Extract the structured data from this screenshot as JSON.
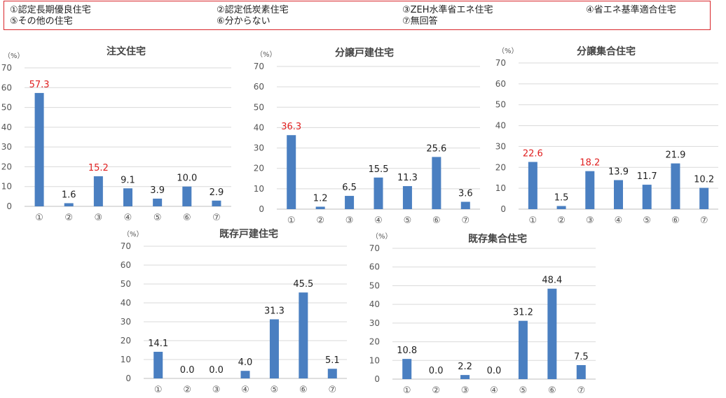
{
  "legend": {
    "items": [
      "①認定長期優良住宅",
      "②認定低炭素住宅",
      "③ZEH水準省エネ住宅",
      "④省エネ基準適合住宅",
      "⑤その他の住宅",
      "⑥分からない",
      "⑦無回答"
    ]
  },
  "colors": {
    "bar": "#4a7fc1",
    "highlight": "#e02020",
    "grid": "#d9d9d9"
  },
  "chart_data": [
    {
      "type": "bar",
      "title": "注文住宅",
      "unit": "（%）",
      "categories": [
        "①",
        "②",
        "③",
        "④",
        "⑤",
        "⑥",
        "⑦"
      ],
      "values": [
        57.3,
        1.6,
        15.2,
        9.1,
        3.9,
        10.0,
        2.9
      ],
      "highlighted": [
        0,
        2
      ],
      "yticks": [
        0,
        10,
        20,
        30,
        40,
        50,
        60,
        70
      ],
      "ylim": [
        0,
        70
      ],
      "grid": true
    },
    {
      "type": "bar",
      "title": "分譲戸建住宅",
      "unit": "（%）",
      "categories": [
        "①",
        "②",
        "③",
        "④",
        "⑤",
        "⑥",
        "⑦"
      ],
      "values": [
        36.3,
        1.2,
        6.5,
        15.5,
        11.3,
        25.6,
        3.6
      ],
      "highlighted": [
        0
      ],
      "yticks": [
        0,
        10,
        20,
        30,
        40,
        50,
        60,
        70
      ],
      "ylim": [
        0,
        70
      ],
      "grid": true
    },
    {
      "type": "bar",
      "title": "分譲集合住宅",
      "unit": "（%）",
      "categories": [
        "①",
        "②",
        "③",
        "④",
        "⑤",
        "⑥",
        "⑦"
      ],
      "values": [
        22.6,
        1.5,
        18.2,
        13.9,
        11.7,
        21.9,
        10.2
      ],
      "highlighted": [
        0,
        2
      ],
      "yticks": [
        0,
        10,
        20,
        30,
        40,
        50,
        60,
        70
      ],
      "ylim": [
        0,
        70
      ],
      "grid": true
    },
    {
      "type": "bar",
      "title": "既存戸建住宅",
      "unit": "（%）",
      "categories": [
        "①",
        "②",
        "③",
        "④",
        "⑤",
        "⑥",
        "⑦"
      ],
      "values": [
        14.1,
        0.0,
        0.0,
        4.0,
        31.3,
        45.5,
        5.1
      ],
      "highlighted": [],
      "yticks": [
        0,
        10,
        20,
        30,
        40,
        50,
        60,
        70
      ],
      "ylim": [
        0,
        70
      ],
      "grid": true
    },
    {
      "type": "bar",
      "title": "既存集合住宅",
      "unit": "（%）",
      "categories": [
        "①",
        "②",
        "③",
        "④",
        "⑤",
        "⑥",
        "⑦"
      ],
      "values": [
        10.8,
        0.0,
        2.2,
        0.0,
        31.2,
        48.4,
        7.5
      ],
      "highlighted": [],
      "yticks": [
        0,
        10,
        20,
        30,
        40,
        50,
        60,
        70
      ],
      "ylim": [
        0,
        70
      ],
      "grid": true
    }
  ]
}
